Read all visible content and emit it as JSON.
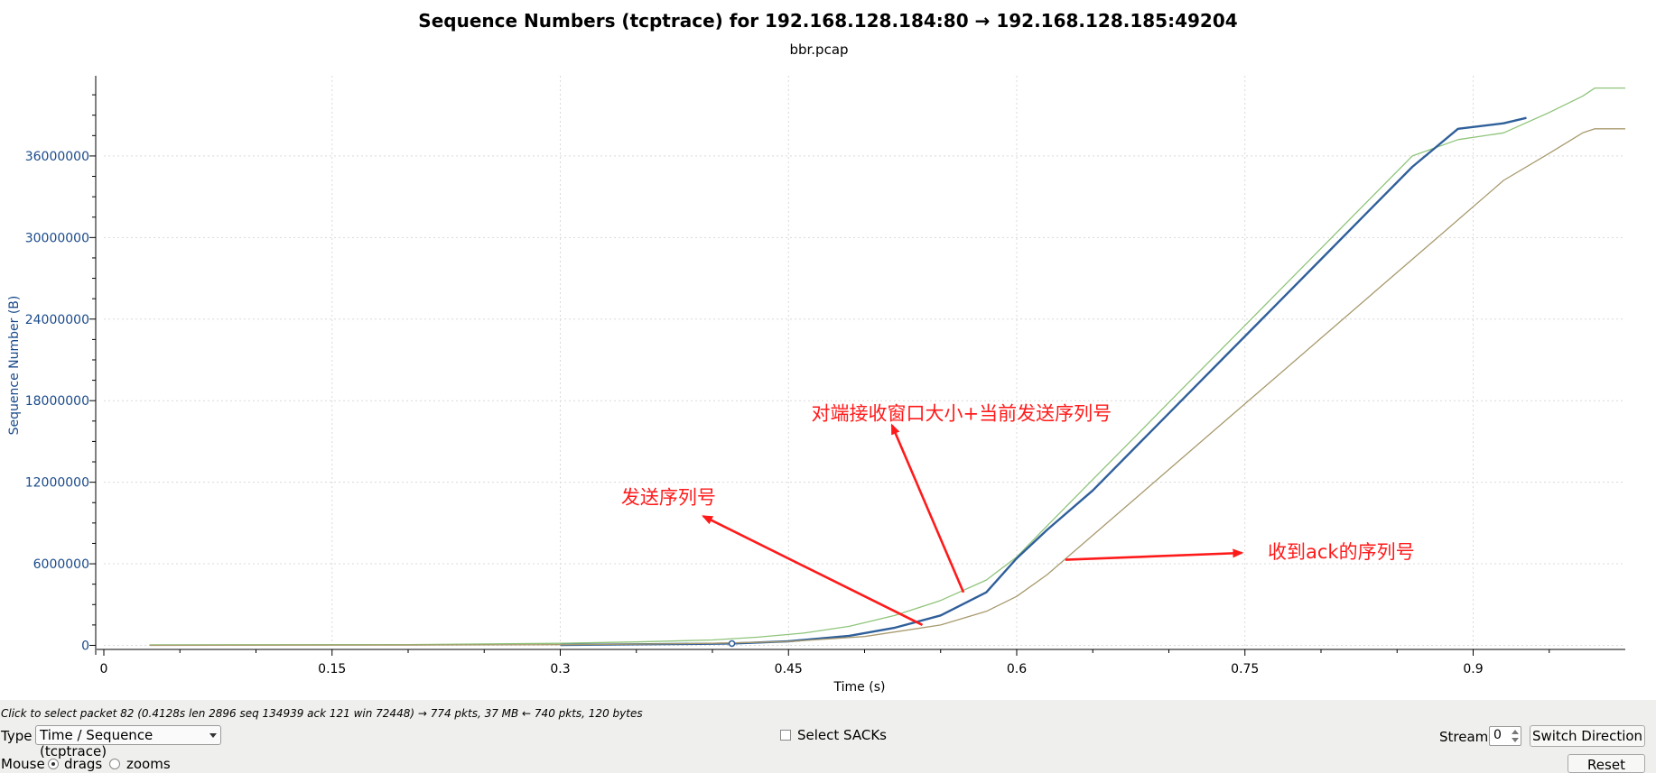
{
  "chart_data": {
    "type": "line",
    "title": "Sequence Numbers (tcptrace) for 192.168.128.184:80 → 192.168.128.185:49204",
    "subtitle": "bbr.pcap",
    "xlabel": "Time (s)",
    "ylabel": "Sequence Number (B)",
    "xlim": [
      0,
      1.0
    ],
    "ylim": [
      -300000,
      41900000
    ],
    "x_ticks": [
      0,
      0.15,
      0.3,
      0.45,
      0.6,
      0.75,
      0.9
    ],
    "x_tick_labels": [
      "0",
      "0.15",
      "0.3",
      "0.45",
      "0.6",
      "0.75",
      "0.9"
    ],
    "y_ticks": [
      0,
      6000000,
      12000000,
      18000000,
      24000000,
      30000000,
      36000000
    ],
    "y_tick_labels": [
      "0",
      "6000000",
      "12000000",
      "18000000",
      "24000000",
      "30000000",
      "36000000"
    ],
    "grid": true,
    "series": [
      {
        "color": "#8fc47a",
        "x": [
          0.03,
          0.2,
          0.3,
          0.35,
          0.4,
          0.43,
          0.46,
          0.49,
          0.52,
          0.55,
          0.58,
          0.6,
          0.62,
          0.65,
          0.68,
          0.71,
          0.74,
          0.77,
          0.8,
          0.83,
          0.86,
          0.89,
          0.92,
          0.95,
          0.972,
          0.98,
          1.0
        ],
        "y": [
          40000,
          60000,
          150000,
          250000,
          400000,
          600000,
          900000,
          1400000,
          2200000,
          3300000,
          4800000,
          6500000,
          8800000,
          12200000,
          15600000,
          19000000,
          22400000,
          25800000,
          29200000,
          32600000,
          36000000,
          37200000,
          37700000,
          39200000,
          40400000,
          41000000,
          41000000
        ]
      },
      {
        "color": "#2f5f9a",
        "x": [
          0.3,
          0.35,
          0.4,
          0.413,
          0.45,
          0.49,
          0.52,
          0.55,
          0.58,
          0.6,
          0.62,
          0.65,
          0.68,
          0.71,
          0.74,
          0.77,
          0.8,
          0.83,
          0.86,
          0.89,
          0.92,
          0.935
        ],
        "y": [
          30000,
          80000,
          120000,
          134939,
          300000,
          700000,
          1300000,
          2200000,
          3900000,
          6400000,
          8500000,
          11400000,
          14800000,
          18200000,
          21600000,
          25000000,
          28400000,
          31800000,
          35200000,
          38000000,
          38400000,
          38800000
        ]
      },
      {
        "color": "#a89a6e",
        "x": [
          0.03,
          0.2,
          0.3,
          0.35,
          0.4,
          0.45,
          0.5,
          0.55,
          0.58,
          0.6,
          0.62,
          0.65,
          0.68,
          0.71,
          0.74,
          0.77,
          0.8,
          0.83,
          0.86,
          0.89,
          0.92,
          0.95,
          0.972,
          0.98,
          1.0
        ],
        "y": [
          0,
          20000,
          50000,
          90000,
          150000,
          280000,
          650000,
          1500000,
          2500000,
          3600000,
          5200000,
          8100000,
          11000000,
          13900000,
          16800000,
          19700000,
          22600000,
          25500000,
          28400000,
          31300000,
          34200000,
          36200000,
          37700000,
          38000000,
          38000000
        ]
      }
    ],
    "selected_point": {
      "x": 0.4128,
      "y": 134939
    },
    "annotations": [
      {
        "text": "对端接收窗口大小+当前发送序列号",
        "x": 0.465,
        "y": 16600000,
        "arrow_from": [
          0.565,
          3900000
        ],
        "arrow_to": [
          0.518,
          16200000
        ]
      },
      {
        "text": "发送序列号",
        "x": 0.34,
        "y": 10400000,
        "arrow_from": [
          0.538,
          1500000
        ],
        "arrow_to": [
          0.394,
          9500000
        ]
      },
      {
        "text": "收到ack的序列号",
        "x": 0.765,
        "y": 6400000,
        "arrow_from": [
          0.632,
          6300000
        ],
        "arrow_to": [
          0.748,
          6800000
        ]
      }
    ]
  },
  "status": {
    "text": "Click to select packet 82 (0.4128s len 2896 seq 134939 ack 121 win 72448) → 774 pkts, 37 MB ← 740 pkts, 120 bytes"
  },
  "controls": {
    "type_label": "Type",
    "type_value": "Time / Sequence (tcptrace)",
    "select_sacks_label": "Select SACKs",
    "stream_label": "Stream",
    "stream_value": "0",
    "switch_direction_label": "Switch Direction",
    "mouse_label": "Mouse",
    "mouse_option_drags": "drags",
    "mouse_option_zooms": "zooms",
    "reset_label": "Reset"
  }
}
